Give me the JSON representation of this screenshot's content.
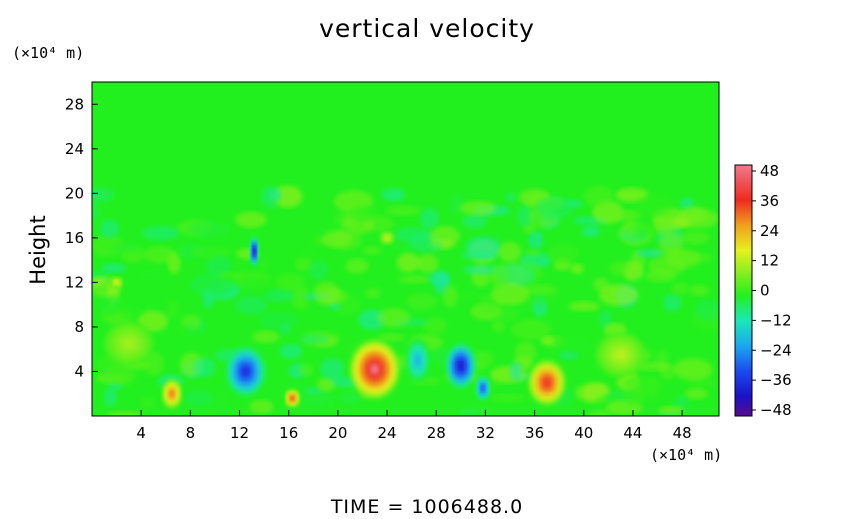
{
  "chart_data": {
    "type": "heatmap",
    "title": "vertical velocity",
    "ylabel": "Height",
    "y_unit": "(×10⁴ m)",
    "x_unit": "(×10⁴ m)",
    "xlim": [
      0,
      51
    ],
    "ylim": [
      0,
      30
    ],
    "x_ticks": [
      "4",
      "8",
      "12",
      "16",
      "20",
      "24",
      "28",
      "32",
      "36",
      "40",
      "44",
      "48"
    ],
    "y_ticks": [
      "4",
      "8",
      "12",
      "16",
      "20",
      "24",
      "28"
    ],
    "colorbar": {
      "ticks": [
        "48",
        "36",
        "24",
        "12",
        "0",
        "−12",
        "−24",
        "−36",
        "−48"
      ],
      "range": [
        -48,
        48
      ]
    },
    "footer": "TIME  =  1006488.0",
    "features": [
      {
        "x": 23,
        "y": 4.2,
        "value": 48,
        "sx": 2.0,
        "sy": 2.6
      },
      {
        "x": 37,
        "y": 3.0,
        "value": 40,
        "sx": 1.5,
        "sy": 2.0
      },
      {
        "x": 6.5,
        "y": 2.0,
        "value": 32,
        "sx": 0.8,
        "sy": 1.3
      },
      {
        "x": 16.3,
        "y": 1.6,
        "value": 38,
        "sx": 0.6,
        "sy": 0.8
      },
      {
        "x": 12.5,
        "y": 4.0,
        "value": -36,
        "sx": 1.6,
        "sy": 2.2
      },
      {
        "x": 30,
        "y": 4.5,
        "value": -42,
        "sx": 1.2,
        "sy": 2.0
      },
      {
        "x": 31.8,
        "y": 2.5,
        "value": -32,
        "sx": 0.6,
        "sy": 1.1
      },
      {
        "x": 13.2,
        "y": 14.8,
        "value": -48,
        "sx": 0.35,
        "sy": 1.3
      },
      {
        "x": 43,
        "y": 5.5,
        "value": 12,
        "sx": 2.0,
        "sy": 2.0
      },
      {
        "x": 3,
        "y": 6.5,
        "value": 10,
        "sx": 2.0,
        "sy": 2.0
      },
      {
        "x": 26.5,
        "y": 5.0,
        "value": -18,
        "sx": 1.0,
        "sy": 2.0
      },
      {
        "x": 24,
        "y": 16,
        "value": 14,
        "sx": 0.6,
        "sy": 0.6
      },
      {
        "x": 2,
        "y": 12,
        "value": 18,
        "sx": 0.5,
        "sy": 0.5
      }
    ]
  }
}
